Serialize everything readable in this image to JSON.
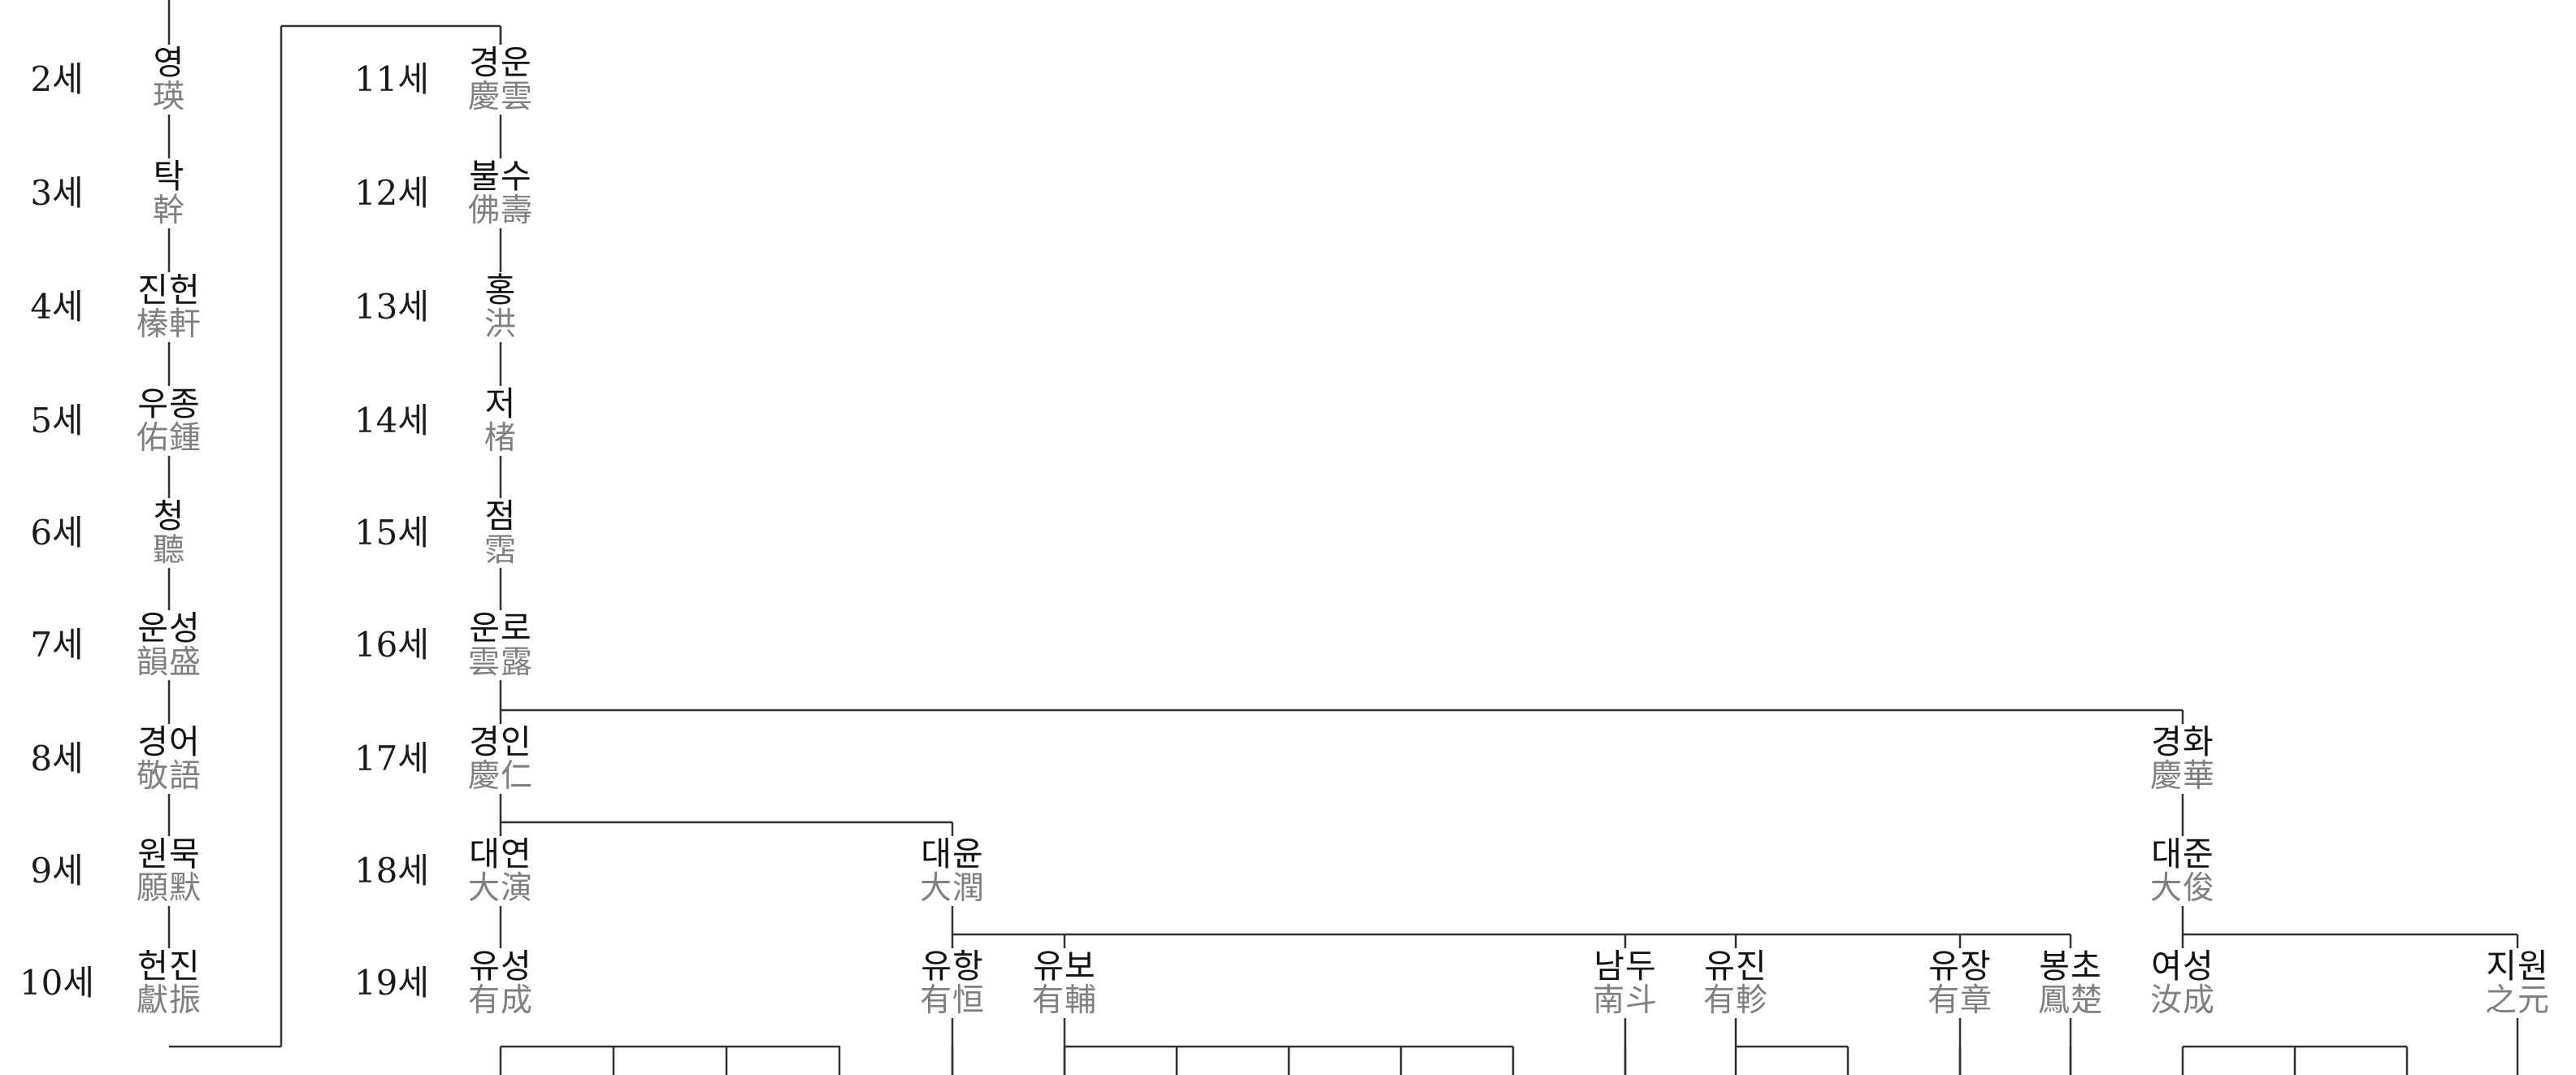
{
  "generation_labels": {
    "left": [
      "2세",
      "3세",
      "4세",
      "5세",
      "6세",
      "7세",
      "8세",
      "9세",
      "10세"
    ],
    "right": [
      "11세",
      "12세",
      "13세",
      "14세",
      "15세",
      "16세",
      "17세",
      "18세",
      "19세"
    ]
  },
  "people": [
    {
      "id": "yeong",
      "kor": "영",
      "han": "瑛"
    },
    {
      "id": "tak",
      "kor": "탁",
      "han": "幹"
    },
    {
      "id": "jinheon",
      "kor": "진헌",
      "han": "榛軒"
    },
    {
      "id": "ujong",
      "kor": "우종",
      "han": "佑鍾"
    },
    {
      "id": "cheong",
      "kor": "청",
      "han": "聽"
    },
    {
      "id": "unseong",
      "kor": "운성",
      "han": "韻盛"
    },
    {
      "id": "gyeongeo",
      "kor": "경어",
      "han": "敬語"
    },
    {
      "id": "wonmuk",
      "kor": "원묵",
      "han": "願默"
    },
    {
      "id": "heonjin",
      "kor": "헌진",
      "han": "獻振"
    },
    {
      "id": "gyeongun",
      "kor": "경운",
      "han": "慶雲"
    },
    {
      "id": "bulsu",
      "kor": "불수",
      "han": "佛壽"
    },
    {
      "id": "hong",
      "kor": "홍",
      "han": "洪"
    },
    {
      "id": "jeo",
      "kor": "저",
      "han": "楮"
    },
    {
      "id": "jeom",
      "kor": "점",
      "han": "霑"
    },
    {
      "id": "unro",
      "kor": "운로",
      "han": "雲露"
    },
    {
      "id": "gyeongin",
      "kor": "경인",
      "han": "慶仁"
    },
    {
      "id": "gyeonghwa",
      "kor": "경화",
      "han": "慶華"
    },
    {
      "id": "daeyeon",
      "kor": "대연",
      "han": "大演"
    },
    {
      "id": "daeyun",
      "kor": "대윤",
      "han": "大潤"
    },
    {
      "id": "daejun",
      "kor": "대준",
      "han": "大俊"
    },
    {
      "id": "yuseong",
      "kor": "유성",
      "han": "有成"
    },
    {
      "id": "yuhang",
      "kor": "유항",
      "han": "有恒"
    },
    {
      "id": "yubo",
      "kor": "유보",
      "han": "有輔"
    },
    {
      "id": "namdu",
      "kor": "남두",
      "han": "南斗"
    },
    {
      "id": "yujin",
      "kor": "유진",
      "han": "有軫"
    },
    {
      "id": "yujang",
      "kor": "유장",
      "han": "有章"
    },
    {
      "id": "bongcho",
      "kor": "봉초",
      "han": "鳳楚"
    },
    {
      "id": "yeoseong",
      "kor": "여성",
      "han": "汝成"
    },
    {
      "id": "jiwon",
      "kor": "지원",
      "han": "之元"
    }
  ]
}
